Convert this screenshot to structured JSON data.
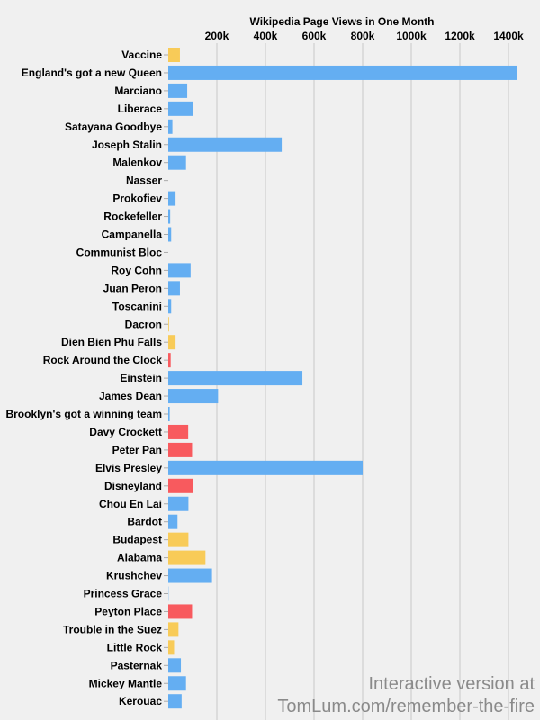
{
  "chart_data": {
    "type": "bar",
    "orientation": "horizontal",
    "title": "Wikipedia Page Views in One Month",
    "xlabel": "",
    "ylabel": "",
    "xlim": [
      0,
      1450000
    ],
    "x_ticks": [
      200000,
      400000,
      600000,
      800000,
      1000000,
      1200000,
      1400000
    ],
    "x_tick_labels": [
      "200k",
      "400k",
      "600k",
      "800k",
      "1000k",
      "1200k",
      "1400k"
    ],
    "grid": true,
    "colors": {
      "blue": "#64aef2",
      "yellow": "#f8cb58",
      "red": "#f85a5e"
    },
    "categories": [
      "Vaccine",
      "England's got a new Queen",
      "Marciano",
      "Liberace",
      "Satayana Goodbye",
      "Joseph Stalin",
      "Malenkov",
      "Nasser",
      "Prokofiev",
      "Rockefeller",
      "Campanella",
      "Communist Bloc",
      "Roy Cohn",
      "Juan Peron",
      "Toscanini",
      "Dacron",
      "Dien Bien Phu Falls",
      "Rock Around the Clock",
      "Einstein",
      "James Dean",
      "Brooklyn's got a winning team",
      "Davy Crockett",
      "Peter Pan",
      "Elvis Presley",
      "Disneyland",
      "Chou En Lai",
      "Bardot",
      "Budapest",
      "Alabama",
      "Krushchev",
      "Princess Grace",
      "Peyton Place",
      "Trouble in the Suez",
      "Little Rock",
      "Pasternak",
      "Mickey Mantle",
      "Kerouac"
    ],
    "values": [
      48000,
      1435000,
      78000,
      103000,
      17000,
      467000,
      73000,
      0,
      30000,
      8000,
      12000,
      0,
      92000,
      48000,
      12000,
      3000,
      30000,
      10000,
      552000,
      205000,
      6000,
      82000,
      98000,
      800000,
      100000,
      83000,
      38000,
      83000,
      153000,
      180000,
      1000,
      98000,
      42000,
      24000,
      52000,
      73000,
      55000
    ],
    "bar_colors": [
      "yellow",
      "blue",
      "blue",
      "blue",
      "blue",
      "blue",
      "blue",
      "blue",
      "blue",
      "blue",
      "blue",
      "blue",
      "blue",
      "blue",
      "blue",
      "yellow",
      "yellow",
      "red",
      "blue",
      "blue",
      "blue",
      "red",
      "red",
      "blue",
      "red",
      "blue",
      "blue",
      "yellow",
      "yellow",
      "blue",
      "blue",
      "red",
      "yellow",
      "yellow",
      "blue",
      "blue",
      "blue"
    ]
  },
  "footer": {
    "line1": "Interactive version at",
    "line2": "TomLum.com/remember-the-fire"
  }
}
